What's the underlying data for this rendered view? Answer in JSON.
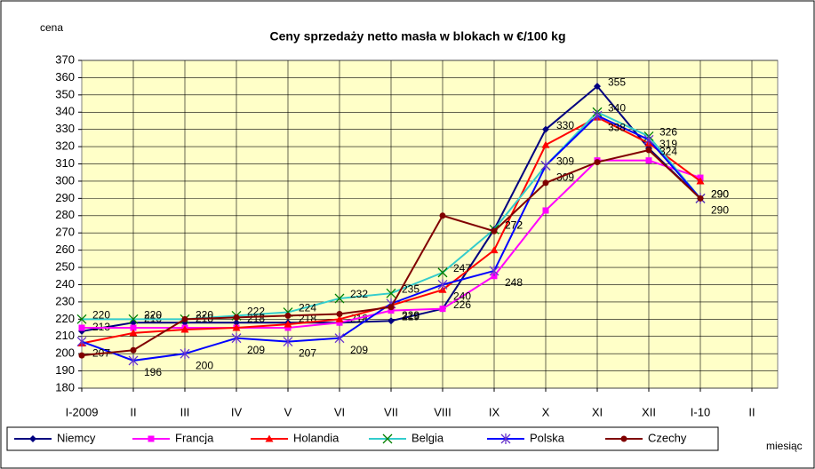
{
  "chart_data": {
    "type": "line",
    "title": "Ceny sprzedaży netto masła w blokach w €/100 kg",
    "y_label": "cena",
    "x_label": "miesiąc",
    "categories": [
      "I-2009",
      "II",
      "III",
      "IV",
      "V",
      "VI",
      "VII",
      "VIII",
      "IX",
      "X",
      "XI",
      "XII",
      "I-10",
      "II"
    ],
    "ylim": [
      180,
      370
    ],
    "yticks": [
      180,
      190,
      200,
      210,
      220,
      230,
      240,
      250,
      260,
      270,
      280,
      290,
      300,
      310,
      320,
      330,
      340,
      350,
      360,
      370
    ],
    "grid": true,
    "background": "#ffffc8",
    "legend": "bottom",
    "series": [
      {
        "name": "Niemcy",
        "color": "#000080",
        "marker": "diamond",
        "labels": true,
        "values": [
          213,
          218,
          218,
          218,
          218,
          218,
          219,
          226,
          272,
          330,
          355,
          319,
          290,
          null
        ]
      },
      {
        "name": "Francja",
        "color": "#ff00ff",
        "marker": "square",
        "labels": false,
        "values": [
          215,
          215,
          215,
          215,
          215,
          218,
          225,
          226,
          245,
          283,
          312,
          312,
          302,
          null
        ]
      },
      {
        "name": "Holandia",
        "color": "#ff0000",
        "marker": "triangle",
        "labels": false,
        "values": [
          206,
          212,
          214,
          215,
          217,
          220,
          228,
          237,
          260,
          321,
          337,
          322,
          300,
          null
        ]
      },
      {
        "name": "Belgia",
        "color": "#33cccc",
        "marker": "x",
        "labels": true,
        "values": [
          220,
          220,
          220,
          222,
          224,
          232,
          235,
          247,
          272,
          309,
          340,
          326,
          290,
          null
        ]
      },
      {
        "name": "Polska",
        "color": "#0000ff",
        "marker": "star",
        "labels": true,
        "values": [
          207,
          196,
          200,
          209,
          207,
          209,
          229,
          240,
          248,
          309,
          338,
          324,
          290,
          null
        ]
      },
      {
        "name": "Czechy",
        "color": "#800000",
        "marker": "circle",
        "labels": false,
        "values": [
          199,
          202,
          220,
          221,
          222,
          223,
          227,
          280,
          271,
          299,
          311,
          318,
          290,
          null
        ]
      }
    ]
  }
}
